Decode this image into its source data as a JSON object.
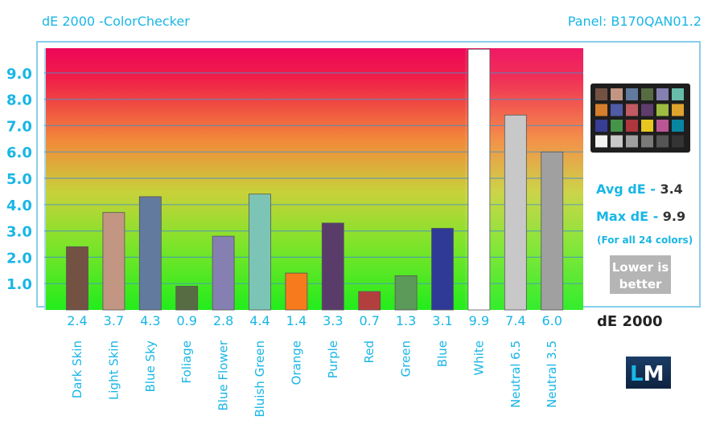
{
  "header": {
    "title": "dE 2000 -ColorChecker",
    "panel": "Panel: B170QAN01.2"
  },
  "chart_data": {
    "type": "bar",
    "title": "dE 2000 -ColorChecker",
    "ylim": [
      0,
      10
    ],
    "yticks": [
      "1.0",
      "2.0",
      "3.0",
      "4.0",
      "5.0",
      "6.0",
      "7.0",
      "8.0",
      "9.0"
    ],
    "grid": true,
    "categories": [
      "Dark Skin",
      "Light Skin",
      "Blue Sky",
      "Foliage",
      "Blue Flower",
      "Bluish Green",
      "Orange",
      "Purple",
      "Red",
      "Green",
      "Blue",
      "White",
      "Neutral 6.5",
      "Neutral 3.5"
    ],
    "values": [
      2.4,
      3.7,
      4.3,
      0.9,
      2.8,
      4.4,
      1.4,
      3.3,
      0.7,
      1.3,
      3.1,
      9.9,
      7.4,
      6.0
    ],
    "value_labels": [
      "2.4",
      "3.7",
      "4.3",
      "0.9",
      "2.8",
      "4.4",
      "1.4",
      "3.3",
      "0.7",
      "1.3",
      "3.1",
      "9.9",
      "7.4",
      "6.0"
    ],
    "bar_colors": [
      "#735244",
      "#c29682",
      "#627a9d",
      "#576c43",
      "#8580b1",
      "#7cc5b6",
      "#f77a1c",
      "#5a3c6b",
      "#b33e3e",
      "#5c9a5a",
      "#2f3a96",
      "#ffffff",
      "#c8c8c8",
      "#a0a0a0"
    ]
  },
  "side_panel": {
    "avg_label": "Avg dE - ",
    "avg_value": "3.4",
    "max_label": "Max dE - ",
    "max_value": "9.9",
    "note": "(For all 24 colors)",
    "lower_line1": "Lower is",
    "lower_line2": "better",
    "metric": "dE 2000",
    "logo_l": "L",
    "logo_m": "M"
  },
  "colorchecker_swatches": [
    "#735244",
    "#c29682",
    "#627a9d",
    "#576c43",
    "#8580b1",
    "#67bdaa",
    "#d67e2c",
    "#505ba6",
    "#c15a63",
    "#5e3c6c",
    "#9dbc40",
    "#e0a32e",
    "#383d96",
    "#469449",
    "#af363c",
    "#e7c71f",
    "#bb5695",
    "#0885a1",
    "#f3f3f2",
    "#c8c8c8",
    "#a0a0a0",
    "#7a7a79",
    "#555555",
    "#343434"
  ],
  "colors": {
    "accent": "#19b6e6",
    "frame": "#87ceeb"
  }
}
